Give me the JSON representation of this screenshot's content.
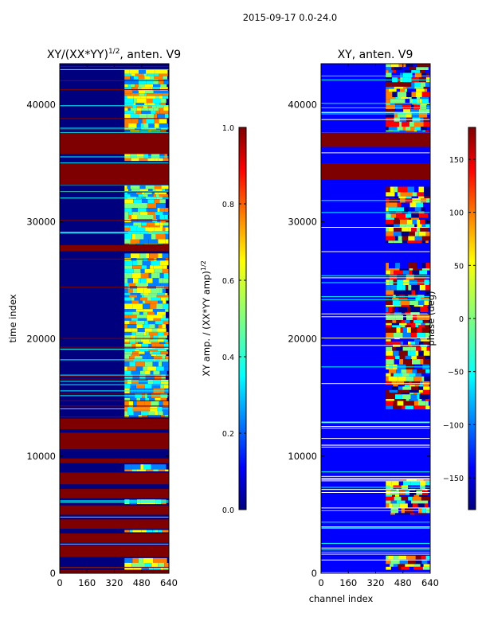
{
  "figure_title": "2015-09-17 0.0-24.0",
  "colors": {
    "jet": [
      "#00007f",
      "#0000ff",
      "#007fff",
      "#00ffff",
      "#7fff7f",
      "#ffff00",
      "#ff7f00",
      "#ff0000",
      "#7f0000"
    ],
    "background": "#ffffff",
    "axis": "#000000"
  },
  "chart_data": [
    {
      "type": "heatmap",
      "title": "XY/(XX*YY)",
      "title_exponent": "1/2",
      "title_suffix": ", anten. V9",
      "xlabel": "",
      "ylabel": "time index",
      "xlim": [
        0,
        640
      ],
      "ylim": [
        0,
        43500
      ],
      "xticks": [
        0,
        160,
        320,
        480,
        640
      ],
      "yticks": [
        0,
        10000,
        20000,
        30000,
        40000
      ],
      "colorbar": {
        "label": "XY amp. / (XX*YY amp)",
        "label_exponent": "1/2",
        "range": [
          0.0,
          1.0
        ],
        "ticks": [
          0.0,
          0.2,
          0.4,
          0.6,
          0.8,
          1.0
        ],
        "tick_labels": [
          "0.0",
          "0.2",
          "0.4",
          "0.6",
          "0.8",
          "1.0"
        ]
      },
      "saturated_bands": [
        [
          37600,
          35800
        ],
        [
          35000,
          33200
        ],
        [
          28000,
          27500
        ],
        [
          13200,
          12300
        ],
        [
          12000,
          10600
        ],
        [
          9800,
          9400
        ],
        [
          8600,
          7600
        ],
        [
          7200,
          6400
        ],
        [
          5800,
          5000
        ],
        [
          4600,
          3800
        ],
        [
          3400,
          2600
        ],
        [
          2400,
          1400
        ]
      ],
      "active_channel_range": [
        380,
        620
      ],
      "active_time_ranges": [
        [
          43000,
          37700
        ],
        [
          35800,
          35200
        ],
        [
          33100,
          28100
        ],
        [
          27300,
          13300
        ],
        [
          9300,
          8700
        ],
        [
          6300,
          5900
        ],
        [
          3700,
          3500
        ],
        [
          1300,
          300
        ]
      ]
    },
    {
      "type": "heatmap",
      "title": "XY, anten. V9",
      "xlabel": "channel index",
      "ylabel": "",
      "xlim": [
        0,
        640
      ],
      "ylim": [
        0,
        43500
      ],
      "xticks": [
        0,
        160,
        320,
        480,
        640
      ],
      "yticks": [
        0,
        10000,
        20000,
        30000,
        40000
      ],
      "colorbar": {
        "label": "phase (deg)",
        "range": [
          -180,
          180
        ],
        "ticks": [
          -150,
          -100,
          -50,
          0,
          50,
          100,
          150
        ],
        "tick_labels": [
          "−150",
          "−100",
          "−50",
          "0",
          "50",
          "100",
          "150"
        ]
      },
      "saturated_bands": [
        [
          37600,
          36400
        ],
        [
          35000,
          33600
        ]
      ],
      "active_channel_range": [
        380,
        620
      ],
      "active_time_ranges": [
        [
          43500,
          37700
        ],
        [
          33000,
          28200
        ],
        [
          26500,
          14000
        ],
        [
          8000,
          5000
        ],
        [
          1500,
          300
        ]
      ]
    }
  ]
}
